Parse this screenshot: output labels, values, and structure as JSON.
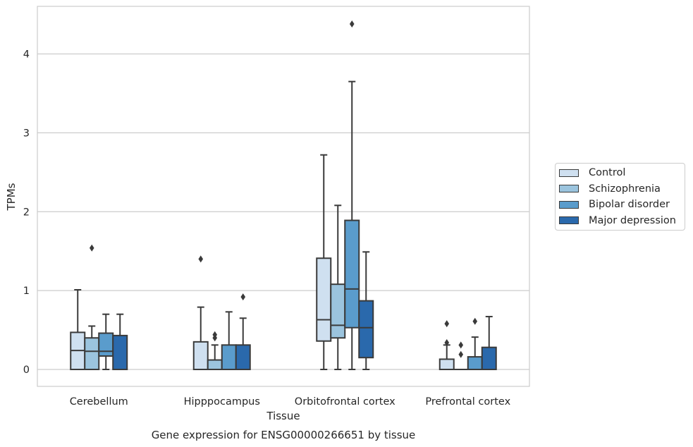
{
  "chart_data": {
    "type": "box",
    "title": "Gene expression for ENSG00000266651 by tissue",
    "xlabel": "Tissue",
    "ylabel": "TPMs",
    "categories": [
      "Cerebellum",
      "Hipppocampus",
      "Orbitofrontal cortex",
      "Prefrontal cortex"
    ],
    "ylim": [
      -0.21,
      4.6
    ],
    "yticks": [
      0,
      1,
      2,
      3,
      4
    ],
    "grid": "horizontal",
    "legend_position": "right",
    "series": [
      {
        "name": "Control",
        "color": "#cfe0f0",
        "boxes": [
          {
            "whisker_low": 0,
            "q1": 0,
            "median": 0.24,
            "q3": 0.47,
            "whisker_high": 1.01,
            "outliers": []
          },
          {
            "whisker_low": 0,
            "q1": 0,
            "median": 0,
            "q3": 0.35,
            "whisker_high": 0.79,
            "outliers": [
              1.4
            ]
          },
          {
            "whisker_low": 0,
            "q1": 0.36,
            "median": 0.63,
            "q3": 1.41,
            "whisker_high": 2.72,
            "outliers": []
          },
          {
            "whisker_low": 0,
            "q1": 0,
            "median": 0,
            "q3": 0.13,
            "whisker_high": 0.31,
            "outliers": [
              0.34,
              0.58
            ]
          }
        ]
      },
      {
        "name": "Schizophrenia",
        "color": "#9bc4de",
        "boxes": [
          {
            "whisker_low": 0,
            "q1": 0,
            "median": 0.23,
            "q3": 0.4,
            "whisker_high": 0.55,
            "outliers": [
              1.54
            ]
          },
          {
            "whisker_low": 0,
            "q1": 0,
            "median": 0,
            "q3": 0.12,
            "whisker_high": 0.31,
            "outliers": [
              0.4,
              0.44
            ]
          },
          {
            "whisker_low": 0,
            "q1": 0.4,
            "median": 0.56,
            "q3": 1.08,
            "whisker_high": 2.08,
            "outliers": []
          },
          {
            "whisker_low": 0,
            "q1": 0,
            "median": 0,
            "q3": 0,
            "whisker_high": 0,
            "outliers": [
              0.19,
              0.31
            ]
          }
        ]
      },
      {
        "name": "Bipolar disorder",
        "color": "#5a9ccc",
        "boxes": [
          {
            "whisker_low": 0,
            "q1": 0.17,
            "median": 0.23,
            "q3": 0.46,
            "whisker_high": 0.7,
            "outliers": []
          },
          {
            "whisker_low": 0,
            "q1": 0,
            "median": 0,
            "q3": 0.31,
            "whisker_high": 0.73,
            "outliers": []
          },
          {
            "whisker_low": 0,
            "q1": 0.53,
            "median": 1.02,
            "q3": 1.89,
            "whisker_high": 3.65,
            "outliers": [
              4.38
            ]
          },
          {
            "whisker_low": 0,
            "q1": 0,
            "median": 0,
            "q3": 0.16,
            "whisker_high": 0.41,
            "outliers": [
              0.61
            ]
          }
        ]
      },
      {
        "name": "Major depression",
        "color": "#2a69ac",
        "boxes": [
          {
            "whisker_low": 0,
            "q1": 0,
            "median": 0,
            "q3": 0.43,
            "whisker_high": 0.7,
            "outliers": []
          },
          {
            "whisker_low": 0,
            "q1": 0,
            "median": 0,
            "q3": 0.31,
            "whisker_high": 0.65,
            "outliers": [
              0.92
            ]
          },
          {
            "whisker_low": 0,
            "q1": 0.15,
            "median": 0.53,
            "q3": 0.87,
            "whisker_high": 1.49,
            "outliers": []
          },
          {
            "whisker_low": 0,
            "q1": 0,
            "median": 0,
            "q3": 0.28,
            "whisker_high": 0.67,
            "outliers": []
          }
        ]
      }
    ]
  }
}
